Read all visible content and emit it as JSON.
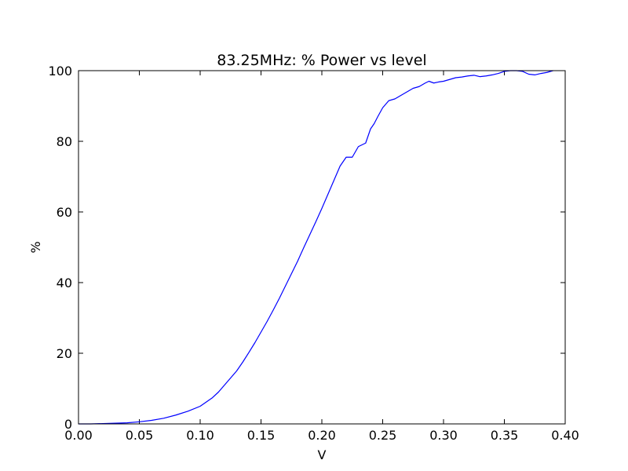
{
  "chart_data": {
    "type": "line",
    "title": "83.25MHz: % Power vs level",
    "xlabel": "V",
    "ylabel": "%",
    "xlim": [
      0.0,
      0.4
    ],
    "ylim": [
      0,
      100
    ],
    "xticks": [
      "0.00",
      "0.05",
      "0.10",
      "0.15",
      "0.20",
      "0.25",
      "0.30",
      "0.35",
      "0.40"
    ],
    "yticks": [
      "0",
      "20",
      "40",
      "60",
      "80",
      "100"
    ],
    "grid": false,
    "series": [
      {
        "color": "#0000ff",
        "x": [
          0.0,
          0.01,
          0.02,
          0.03,
          0.04,
          0.05,
          0.06,
          0.07,
          0.08,
          0.09,
          0.1,
          0.105,
          0.11,
          0.115,
          0.12,
          0.125,
          0.13,
          0.135,
          0.14,
          0.145,
          0.15,
          0.155,
          0.16,
          0.165,
          0.17,
          0.175,
          0.18,
          0.185,
          0.19,
          0.195,
          0.2,
          0.205,
          0.21,
          0.215,
          0.22,
          0.225,
          0.23,
          0.233,
          0.236,
          0.24,
          0.243,
          0.246,
          0.25,
          0.255,
          0.26,
          0.265,
          0.27,
          0.275,
          0.28,
          0.285,
          0.288,
          0.292,
          0.296,
          0.3,
          0.305,
          0.31,
          0.315,
          0.32,
          0.325,
          0.33,
          0.335,
          0.34,
          0.345,
          0.35,
          0.355,
          0.36,
          0.365,
          0.37,
          0.375,
          0.38,
          0.385,
          0.39
        ],
        "y": [
          0.0,
          0.0,
          0.1,
          0.2,
          0.3,
          0.6,
          1.0,
          1.6,
          2.5,
          3.6,
          5.0,
          6.2,
          7.4,
          9.0,
          11.0,
          13.0,
          15.0,
          17.5,
          20.2,
          23.0,
          26.0,
          29.0,
          32.2,
          35.5,
          39.0,
          42.5,
          46.0,
          49.8,
          53.5,
          57.2,
          61.0,
          65.0,
          69.0,
          73.0,
          75.5,
          75.5,
          78.5,
          79.0,
          79.5,
          83.5,
          85.0,
          87.0,
          89.5,
          91.5,
          92.0,
          93.0,
          94.0,
          95.0,
          95.5,
          96.5,
          97.0,
          96.5,
          96.8,
          97.0,
          97.5,
          98.0,
          98.2,
          98.5,
          98.7,
          98.3,
          98.5,
          98.8,
          99.2,
          99.8,
          100.0,
          100.0,
          99.8,
          99.0,
          98.8,
          99.2,
          99.5,
          100.0
        ]
      }
    ]
  }
}
